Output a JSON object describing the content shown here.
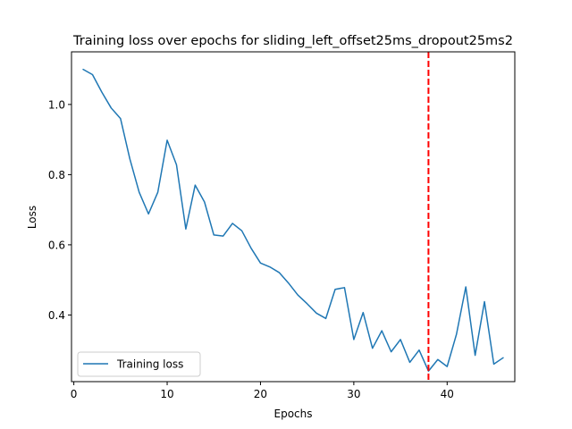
{
  "chart_data": {
    "type": "line",
    "title": "Training loss over epochs for sliding_left_offset25ms_dropout25ms2",
    "xlabel": "Epochs",
    "ylabel": "Loss",
    "xlim": [
      -0.25,
      47.25
    ],
    "ylim": [
      0.21,
      1.15
    ],
    "xticks": [
      0,
      10,
      20,
      30,
      40
    ],
    "yticks": [
      0.4,
      0.6,
      0.8,
      1.0
    ],
    "xtick_labels": [
      "0",
      "10",
      "20",
      "30",
      "40"
    ],
    "ytick_labels": [
      "0.4",
      "0.6",
      "0.8",
      "1.0"
    ],
    "grid": false,
    "legend_position": "lower-left",
    "series": [
      {
        "name": "Training loss",
        "color": "#1f77b4",
        "x": [
          1,
          2,
          3,
          4,
          5,
          6,
          7,
          8,
          9,
          10,
          11,
          12,
          13,
          14,
          15,
          16,
          17,
          18,
          19,
          20,
          21,
          22,
          23,
          24,
          25,
          26,
          27,
          28,
          29,
          30,
          31,
          32,
          33,
          34,
          35,
          36,
          37,
          38,
          39,
          40,
          41,
          42,
          43,
          44,
          45,
          46
        ],
        "y": [
          1.1,
          1.085,
          1.035,
          0.99,
          0.96,
          0.845,
          0.75,
          0.688,
          0.75,
          0.898,
          0.828,
          0.645,
          0.77,
          0.722,
          0.628,
          0.625,
          0.661,
          0.64,
          0.59,
          0.548,
          0.537,
          0.521,
          0.491,
          0.457,
          0.432,
          0.405,
          0.39,
          0.473,
          0.478,
          0.33,
          0.407,
          0.305,
          0.355,
          0.295,
          0.33,
          0.265,
          0.3,
          0.24,
          0.273,
          0.253,
          0.345,
          0.48,
          0.285,
          0.438,
          0.26,
          0.278
        ]
      }
    ],
    "annotations": [
      {
        "type": "vline",
        "x": 38,
        "color": "#ff0000",
        "style": "dashed"
      }
    ]
  }
}
